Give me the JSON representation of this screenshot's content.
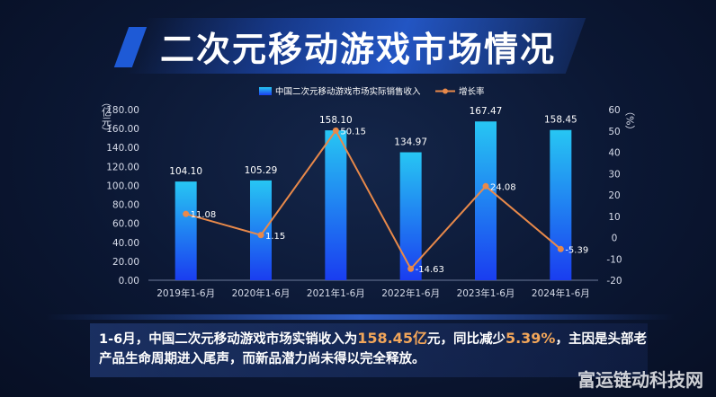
{
  "title": "二次元移动游戏市场情况",
  "chart_data": {
    "type": "bar+line",
    "categories": [
      "2019年1-6月",
      "2020年1-6月",
      "2021年1-6月",
      "2022年1-6月",
      "2023年1-6月",
      "2024年1-6月"
    ],
    "series": [
      {
        "name": "中国二次元移动游戏市场实际销售收入",
        "type": "bar",
        "axis": "left",
        "values": [
          104.1,
          105.29,
          158.1,
          134.97,
          167.47,
          158.45
        ],
        "labels": [
          "104.10",
          "105.29",
          "158.10",
          "134.97",
          "167.47",
          "158.45"
        ]
      },
      {
        "name": "增长率",
        "type": "line",
        "axis": "right",
        "values": [
          11.08,
          1.15,
          50.15,
          -14.63,
          24.08,
          -5.39
        ],
        "labels": [
          "11.08",
          "1.15",
          "50.15",
          "-14.63",
          "24.08",
          "-5.39"
        ]
      }
    ],
    "ylabel_left": "（亿元）",
    "ylabel_right": "（%）",
    "ylim_left": [
      0,
      180
    ],
    "ylim_right": [
      -20,
      60
    ],
    "yticks_left": [
      "0.00",
      "20.00",
      "40.00",
      "60.00",
      "80.00",
      "100.00",
      "120.00",
      "140.00",
      "160.00",
      "180.00"
    ],
    "yticks_right": [
      "-20",
      "-10",
      "0",
      "10",
      "20",
      "30",
      "40",
      "50",
      "60"
    ],
    "legend_position": "top-center",
    "grid": false,
    "colors": {
      "bar_top": "#27c6f3",
      "bar_bottom": "#1a3df0",
      "line": "#e8894a"
    }
  },
  "note": {
    "part1": "1-6月，中国二次元移动游戏市场实销收入为",
    "highlight1": "158.45亿",
    "part2": "元，同比减少",
    "highlight2": "5.39%",
    "part3": "，主因是头部老产品生命周期进入尾声，而新品潜力尚未得以完全释放。"
  },
  "watermark": "富运链动科技网"
}
